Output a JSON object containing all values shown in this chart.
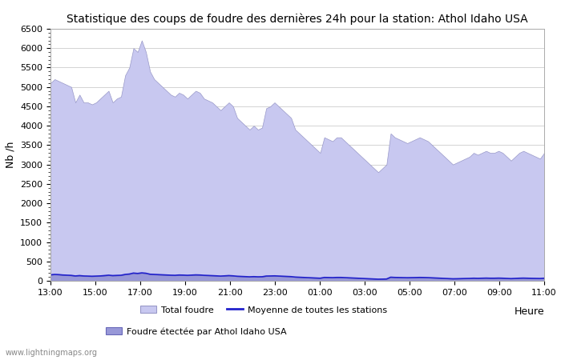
{
  "title": "Statistique des coups de foudre des dernières 24h pour la station: Athol Idaho USA",
  "ylabel": "Nb /h",
  "xlabel": "Heure",
  "watermark": "www.lightningmaps.org",
  "legend": {
    "total_foudre": "Total foudre",
    "moyenne": "Moyenne de toutes les stations",
    "foudre_station": "Foudre étectée par Athol Idaho USA"
  },
  "colors": {
    "total_fill": "#c8c8f0",
    "total_edge": "#9898c8",
    "station_fill": "#9898d8",
    "station_edge": "#6868b8",
    "moyenne_line": "#2222cc",
    "background": "#ffffff",
    "grid": "#cccccc"
  },
  "ylim": [
    0,
    6500
  ],
  "xtick_labels": [
    "13:00",
    "15:00",
    "17:00",
    "19:00",
    "21:00",
    "23:00",
    "01:00",
    "03:00",
    "05:00",
    "07:00",
    "09:00",
    "11:00"
  ],
  "total_foudre": [
    5100,
    5200,
    5150,
    5100,
    5050,
    5000,
    4600,
    4800,
    4600,
    4600,
    4550,
    4600,
    4700,
    4800,
    4900,
    4600,
    4700,
    4750,
    5300,
    5500,
    6000,
    5900,
    6200,
    5900,
    5400,
    5200,
    5100,
    5000,
    4900,
    4800,
    4750,
    4850,
    4800,
    4700,
    4800,
    4900,
    4850,
    4700,
    4650,
    4600,
    4500,
    4400,
    4500,
    4600,
    4500,
    4200,
    4100,
    4000,
    3900,
    4000,
    3900,
    3950,
    4450,
    4500,
    4600,
    4500,
    4400,
    4300,
    4200,
    3900,
    3800,
    3700,
    3600,
    3500,
    3400,
    3300,
    3700,
    3650,
    3600,
    3700,
    3700,
    3600,
    3500,
    3400,
    3300,
    3200,
    3100,
    3000,
    2900,
    2800,
    2900,
    3000,
    3800,
    3700,
    3650,
    3600,
    3550,
    3600,
    3650,
    3700,
    3650,
    3600,
    3500,
    3400,
    3300,
    3200,
    3100,
    3000,
    3050,
    3100,
    3150,
    3200,
    3300,
    3250,
    3300,
    3350,
    3300,
    3300,
    3350,
    3300,
    3200,
    3100,
    3200,
    3300,
    3350,
    3300,
    3250,
    3200,
    3150,
    3300
  ],
  "station_foudre": [
    150,
    160,
    155,
    145,
    140,
    135,
    120,
    130,
    120,
    118,
    115,
    118,
    122,
    130,
    140,
    130,
    135,
    138,
    160,
    170,
    195,
    185,
    200,
    190,
    165,
    160,
    155,
    150,
    145,
    140,
    138,
    145,
    142,
    138,
    142,
    148,
    145,
    138,
    135,
    130,
    125,
    120,
    125,
    130,
    125,
    115,
    110,
    105,
    100,
    105,
    100,
    102,
    120,
    122,
    125,
    120,
    115,
    110,
    105,
    95,
    90,
    85,
    80,
    75,
    70,
    65,
    85,
    83,
    80,
    85,
    85,
    80,
    75,
    70,
    65,
    60,
    55,
    50,
    45,
    40,
    42,
    45,
    90,
    85,
    83,
    80,
    78,
    80,
    82,
    85,
    83,
    80,
    75,
    70,
    65,
    60,
    55,
    50,
    52,
    55,
    58,
    60,
    65,
    62,
    65,
    68,
    65,
    65,
    68,
    65,
    60,
    55,
    60,
    65,
    68,
    65,
    62,
    60,
    58,
    65
  ],
  "moyenne_line": [
    155,
    165,
    160,
    150,
    145,
    140,
    125,
    135,
    125,
    122,
    118,
    122,
    126,
    135,
    145,
    135,
    140,
    143,
    165,
    175,
    200,
    190,
    205,
    195,
    170,
    165,
    160,
    155,
    150,
    145,
    142,
    150,
    147,
    142,
    147,
    153,
    150,
    142,
    138,
    133,
    128,
    122,
    128,
    135,
    128,
    118,
    113,
    108,
    103,
    108,
    103,
    105,
    123,
    125,
    128,
    123,
    118,
    113,
    108,
    97,
    92,
    87,
    82,
    77,
    72,
    67,
    87,
    85,
    82,
    87,
    87,
    82,
    77,
    72,
    67,
    62,
    57,
    52,
    47,
    42,
    44,
    47,
    93,
    87,
    85,
    82,
    80,
    82,
    84,
    87,
    85,
    82,
    77,
    72,
    67,
    62,
    57,
    52,
    54,
    57,
    60,
    62,
    67,
    64,
    67,
    70,
    67,
    67,
    70,
    67,
    62,
    57,
    62,
    67,
    70,
    67,
    64,
    62,
    60,
    67
  ]
}
